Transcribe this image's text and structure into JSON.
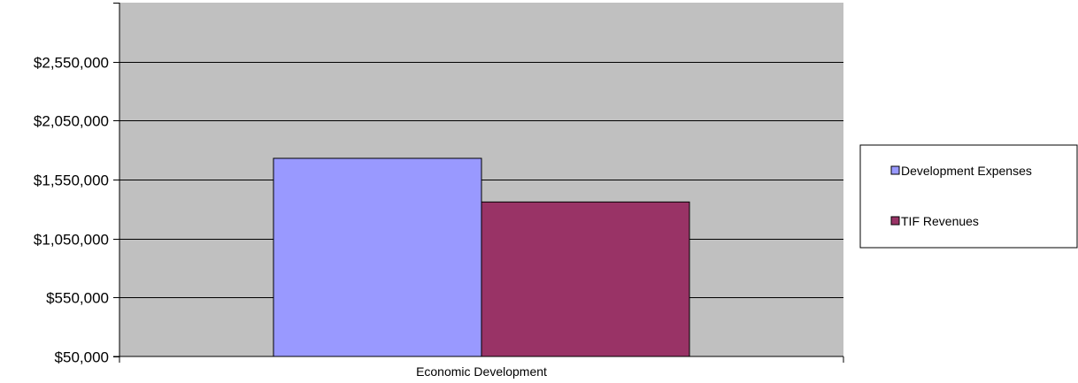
{
  "chart_data": {
    "type": "bar",
    "categories": [
      "Economic Development"
    ],
    "series": [
      {
        "name": "Development Expenses",
        "values": [
          1730000
        ],
        "color": "#9999ff"
      },
      {
        "name": "TIF Revenues",
        "values": [
          1360000
        ],
        "color": "#993366"
      }
    ],
    "yticks": [
      50000,
      550000,
      1050000,
      1550000,
      2050000,
      2550000
    ],
    "ytick_labels": [
      "$50,000",
      "$550,000",
      "$1,050,000",
      "$1,550,000",
      "$2,050,000",
      "$2,550,000"
    ],
    "ylim": [
      50000,
      3050000
    ],
    "grid": true,
    "legend": "right",
    "plot_background": "#c0c0c0",
    "title": "",
    "xlabel": "",
    "ylabel": ""
  }
}
